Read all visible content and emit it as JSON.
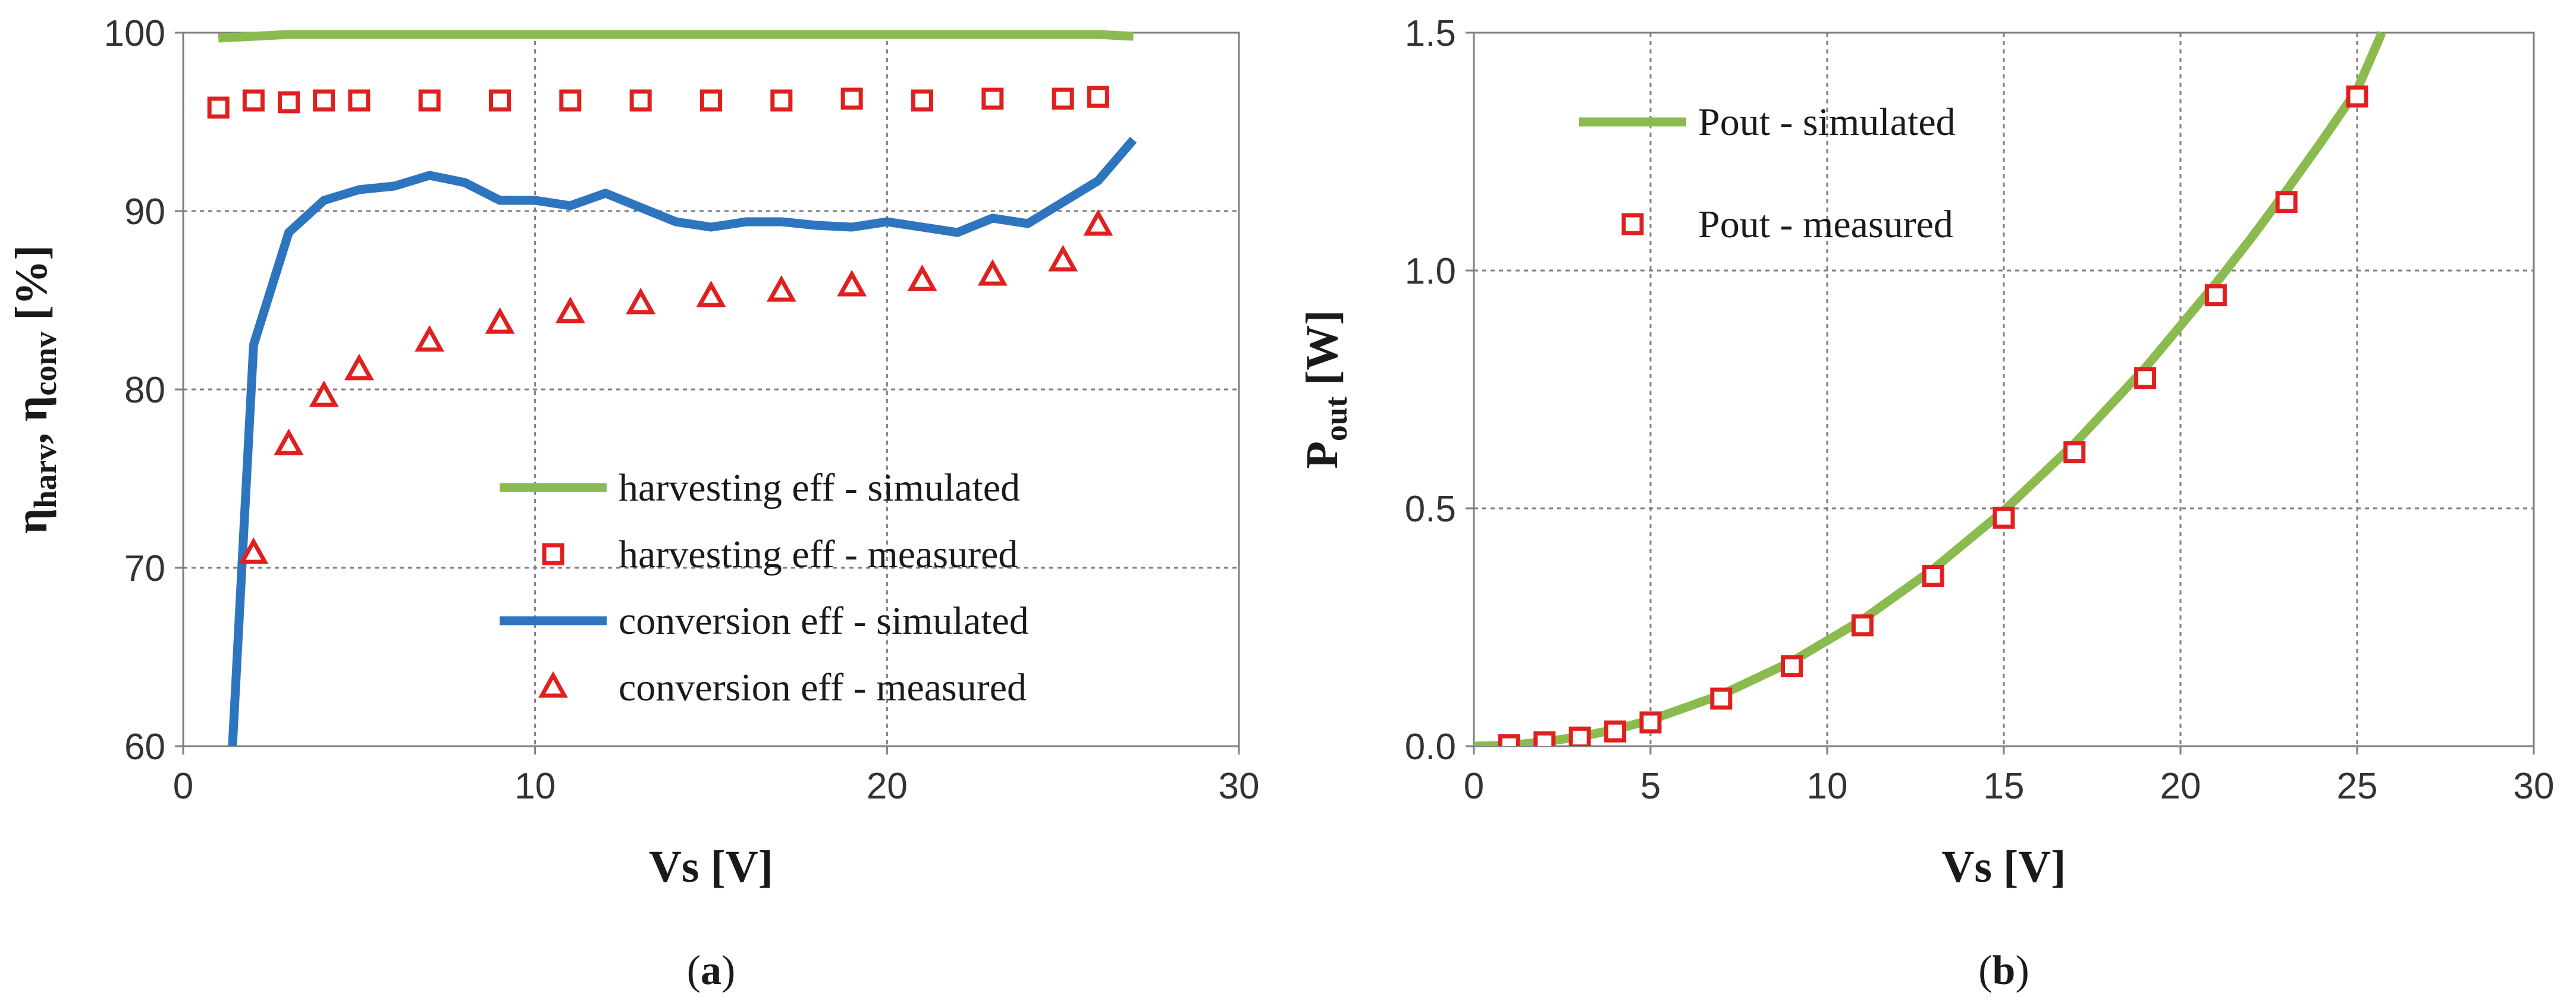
{
  "chart_data": [
    {
      "type": "line",
      "panel": "a",
      "caption_letter": "a",
      "title": "",
      "xlabel": "Vs [V]",
      "ylabel": {
        "eta": "η",
        "sub1": "harv",
        "sep": ", ",
        "eta2": "η",
        "sub2": "conv",
        "unit": "[%]"
      },
      "xlim": [
        0,
        30
      ],
      "ylim": [
        60,
        100
      ],
      "xticks": [
        0,
        10,
        20,
        30
      ],
      "yticks": [
        60,
        70,
        80,
        90,
        100
      ],
      "grid": true,
      "legend_position": "lower-right",
      "series": [
        {
          "name": "harvesting eff - simulated",
          "kind": "line",
          "color": "#8bbb4f",
          "x": [
            1,
            2,
            3,
            4,
            5,
            7,
            10,
            15,
            20,
            25,
            26,
            27
          ],
          "y": [
            99.7,
            99.8,
            99.9,
            99.9,
            99.9,
            99.9,
            99.9,
            99.9,
            99.9,
            99.9,
            99.9,
            99.8
          ]
        },
        {
          "name": "harvesting eff - measured",
          "kind": "square",
          "color": "#e01f1f",
          "x": [
            1,
            2,
            3,
            4,
            5,
            7,
            9,
            11,
            13,
            15,
            17,
            19,
            21,
            23,
            25,
            26
          ],
          "y": [
            95.8,
            96.2,
            96.1,
            96.2,
            96.2,
            96.2,
            96.2,
            96.2,
            96.2,
            96.2,
            96.2,
            96.3,
            96.2,
            96.3,
            96.3,
            96.4
          ]
        },
        {
          "name": "conversion eff - simulated",
          "kind": "line",
          "color": "#2e75c0",
          "x": [
            1.4,
            2,
            3,
            4,
            5,
            6,
            7,
            8,
            9,
            10,
            11,
            12,
            13,
            14,
            15,
            16,
            17,
            18,
            19,
            20,
            21,
            22,
            23,
            24,
            25,
            26,
            27
          ],
          "y": [
            60,
            82.5,
            88.8,
            90.6,
            91.2,
            91.4,
            92.0,
            91.6,
            90.6,
            90.6,
            90.3,
            91.0,
            90.2,
            89.4,
            89.1,
            89.4,
            89.4,
            89.2,
            89.1,
            89.4,
            89.1,
            88.8,
            89.6,
            89.3,
            90.5,
            91.7,
            94.0
          ]
        },
        {
          "name": "conversion eff - measured",
          "kind": "triangle",
          "color": "#e01f1f",
          "x": [
            2,
            3,
            4,
            5,
            7,
            9,
            11,
            13,
            15,
            17,
            19,
            21,
            23,
            25,
            26
          ],
          "y": [
            70.8,
            76.9,
            79.6,
            81.1,
            82.7,
            83.7,
            84.3,
            84.8,
            85.2,
            85.5,
            85.8,
            86.1,
            86.4,
            87.2,
            89.2
          ]
        }
      ]
    },
    {
      "type": "line",
      "panel": "b",
      "caption_letter": "b",
      "title": "",
      "xlabel": "Vs [V]",
      "ylabel": {
        "main": "P",
        "sub": "out",
        "unit": " [W]"
      },
      "xlim": [
        0,
        30
      ],
      "ylim": [
        0,
        1.5
      ],
      "xticks": [
        0,
        5,
        10,
        15,
        20,
        25,
        30
      ],
      "yticks": [
        0.0,
        0.5,
        1.0,
        1.5
      ],
      "ytick_labels": [
        "0.0",
        "0.5",
        "1.0",
        "1.5"
      ],
      "grid": true,
      "legend_position": "top-left",
      "series": [
        {
          "name": "Pout - simulated",
          "kind": "line",
          "color": "#8bbb4f",
          "x": [
            0,
            1,
            2,
            3,
            4,
            5,
            7,
            9,
            11,
            13,
            15,
            17,
            19,
            21,
            22,
            23,
            24,
            25,
            25.7
          ],
          "y": [
            0,
            0.002,
            0.009,
            0.02,
            0.035,
            0.055,
            0.108,
            0.178,
            0.266,
            0.372,
            0.495,
            0.636,
            0.795,
            0.973,
            1.068,
            1.168,
            1.272,
            1.38,
            1.5
          ]
        },
        {
          "name": "Pout - measured",
          "kind": "square",
          "color": "#e01f1f",
          "x": [
            1,
            2,
            3,
            4,
            5,
            7,
            9,
            11,
            13,
            15,
            17,
            19,
            21,
            23,
            25
          ],
          "y": [
            0.002,
            0.008,
            0.018,
            0.031,
            0.05,
            0.1,
            0.168,
            0.254,
            0.358,
            0.48,
            0.618,
            0.774,
            0.948,
            1.144,
            1.366
          ]
        }
      ]
    }
  ]
}
